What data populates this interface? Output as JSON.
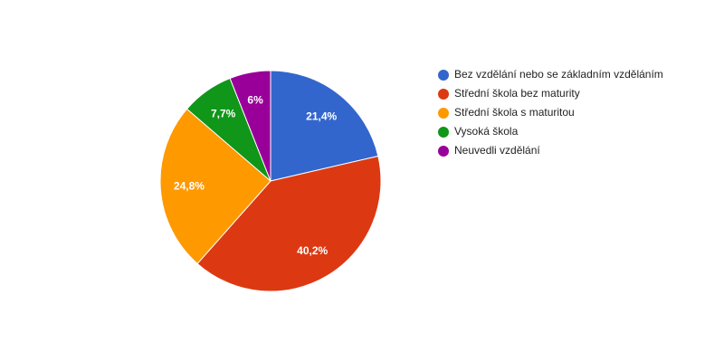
{
  "chart_data": {
    "type": "pie",
    "categories": [
      "Bez vzdělání nebo se základním vzděláním",
      "Střední škola bez maturity",
      "Střední škola s maturitou",
      "Vysoká škola",
      "Neuvedli vzdělání"
    ],
    "values": [
      21.4,
      40.2,
      24.8,
      7.7,
      6
    ],
    "value_labels": [
      "21,4%",
      "40,2%",
      "24,8%",
      "7,7%",
      "6%"
    ],
    "colors": [
      "#3366cc",
      "#dc3912",
      "#ff9900",
      "#109618",
      "#990099"
    ],
    "legend": "right"
  }
}
